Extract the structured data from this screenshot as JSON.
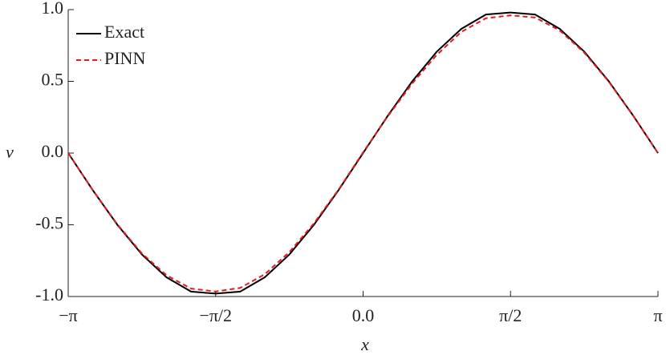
{
  "chart_data": {
    "type": "line",
    "x_label": "x",
    "y_label": "v",
    "x": [
      -3.1416,
      -2.8798,
      -2.618,
      -2.3562,
      -2.0944,
      -1.8326,
      -1.5708,
      -1.309,
      -1.0472,
      -0.7854,
      -0.5236,
      -0.2618,
      0,
      0.2618,
      0.5236,
      0.7854,
      1.0472,
      1.309,
      1.5708,
      1.8326,
      2.0944,
      2.3562,
      2.618,
      2.8798,
      3.1416
    ],
    "series": [
      {
        "name": "Exact",
        "color": "#000000",
        "dash": false,
        "values": [
          0,
          -0.2588,
          -0.5,
          -0.7071,
          -0.866,
          -0.9659,
          -0.98,
          -0.9659,
          -0.866,
          -0.7071,
          -0.5,
          -0.2588,
          0,
          0.2588,
          0.5,
          0.7071,
          0.866,
          0.9659,
          0.98,
          0.9659,
          0.866,
          0.7071,
          0.5,
          0.2588,
          0
        ]
      },
      {
        "name": "PINN",
        "color": "#e8191b",
        "dash": true,
        "values": [
          0,
          -0.258,
          -0.497,
          -0.7,
          -0.852,
          -0.945,
          -0.965,
          -0.94,
          -0.845,
          -0.69,
          -0.49,
          -0.255,
          0.005,
          0.255,
          0.485,
          0.685,
          0.845,
          0.94,
          0.96,
          0.945,
          0.855,
          0.7,
          0.497,
          0.258,
          0
        ]
      }
    ],
    "xlim": [
      -3.1416,
      3.1416
    ],
    "xticks": [
      {
        "value": -3.1416,
        "label": "−π"
      },
      {
        "value": -1.5708,
        "label": "−π/2"
      },
      {
        "value": 0,
        "label": "0.0"
      },
      {
        "value": 1.5708,
        "label": "π/2"
      },
      {
        "value": 3.1416,
        "label": "π"
      }
    ],
    "ylim": [
      -1,
      1
    ],
    "yticks": [
      {
        "value": -1,
        "label": "-1.0"
      },
      {
        "value": -0.5,
        "label": "-0.5"
      },
      {
        "value": 0,
        "label": "0.0"
      },
      {
        "value": 0.5,
        "label": "0.5"
      },
      {
        "value": 1,
        "label": "1.0"
      }
    ],
    "legend": "upper-left"
  }
}
